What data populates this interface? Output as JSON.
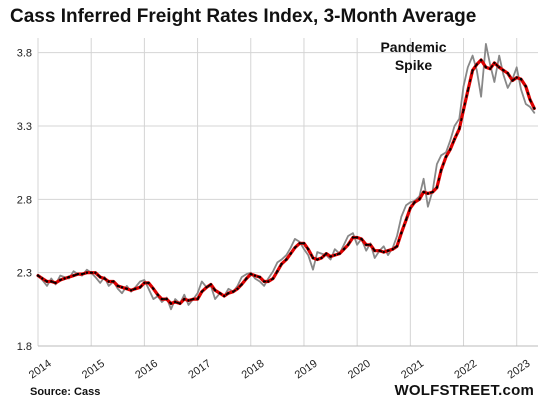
{
  "chart_data": {
    "type": "line",
    "title": "Cass Inferred Freight Rates Index, 3-Month Average",
    "xlabel": "",
    "ylabel": "",
    "ylim": [
      1.8,
      3.9
    ],
    "yticks": [
      1.8,
      2.3,
      2.8,
      3.3,
      3.8
    ],
    "xlim": [
      2014,
      2023.4
    ],
    "xticks": [
      "2014",
      "2015",
      "2016",
      "2017",
      "2018",
      "2019",
      "2020",
      "2021",
      "2022",
      "2023"
    ],
    "grid": true,
    "legend": "none",
    "series": [
      {
        "color": "#888888",
        "x": [
          2014.0,
          2014.08,
          2014.17,
          2014.25,
          2014.33,
          2014.42,
          2014.5,
          2014.58,
          2014.67,
          2014.75,
          2014.83,
          2014.92,
          2015.0,
          2015.08,
          2015.17,
          2015.25,
          2015.33,
          2015.42,
          2015.5,
          2015.58,
          2015.67,
          2015.75,
          2015.83,
          2015.92,
          2016.0,
          2016.08,
          2016.17,
          2016.25,
          2016.33,
          2016.42,
          2016.5,
          2016.58,
          2016.67,
          2016.75,
          2016.83,
          2016.92,
          2017.0,
          2017.08,
          2017.17,
          2017.25,
          2017.33,
          2017.42,
          2017.5,
          2017.58,
          2017.67,
          2017.75,
          2017.83,
          2017.92,
          2018.0,
          2018.08,
          2018.17,
          2018.25,
          2018.33,
          2018.42,
          2018.5,
          2018.58,
          2018.67,
          2018.75,
          2018.83,
          2018.92,
          2019.0,
          2019.08,
          2019.17,
          2019.25,
          2019.33,
          2019.42,
          2019.5,
          2019.58,
          2019.67,
          2019.75,
          2019.83,
          2019.92,
          2020.0,
          2020.08,
          2020.17,
          2020.25,
          2020.33,
          2020.42,
          2020.5,
          2020.58,
          2020.67,
          2020.75,
          2020.83,
          2020.92,
          2021.0,
          2021.08,
          2021.17,
          2021.25,
          2021.33,
          2021.42,
          2021.5,
          2021.58,
          2021.67,
          2021.75,
          2021.83,
          2021.92,
          2022.0,
          2022.08,
          2022.17,
          2022.25,
          2022.33,
          2022.42,
          2022.5,
          2022.58,
          2022.67,
          2022.75,
          2022.83,
          2022.92,
          2023.0,
          2023.08,
          2023.17,
          2023.25,
          2023.33
        ],
        "values": [
          2.28,
          2.25,
          2.21,
          2.26,
          2.22,
          2.28,
          2.27,
          2.26,
          2.31,
          2.29,
          2.28,
          2.32,
          2.3,
          2.27,
          2.23,
          2.27,
          2.21,
          2.24,
          2.19,
          2.16,
          2.21,
          2.17,
          2.2,
          2.24,
          2.25,
          2.19,
          2.12,
          2.14,
          2.1,
          2.13,
          2.05,
          2.12,
          2.09,
          2.15,
          2.08,
          2.12,
          2.16,
          2.24,
          2.2,
          2.21,
          2.12,
          2.16,
          2.14,
          2.19,
          2.17,
          2.21,
          2.27,
          2.29,
          2.3,
          2.26,
          2.24,
          2.21,
          2.26,
          2.31,
          2.37,
          2.39,
          2.42,
          2.47,
          2.53,
          2.51,
          2.46,
          2.42,
          2.32,
          2.44,
          2.43,
          2.42,
          2.39,
          2.46,
          2.43,
          2.49,
          2.55,
          2.57,
          2.49,
          2.53,
          2.45,
          2.5,
          2.4,
          2.45,
          2.48,
          2.42,
          2.47,
          2.55,
          2.68,
          2.76,
          2.78,
          2.79,
          2.82,
          2.94,
          2.75,
          2.86,
          3.04,
          3.1,
          3.12,
          3.2,
          3.3,
          3.35,
          3.57,
          3.7,
          3.78,
          3.68,
          3.5,
          3.86,
          3.72,
          3.6,
          3.78,
          3.65,
          3.56,
          3.62,
          3.7,
          3.55,
          3.45,
          3.43,
          3.39
        ]
      },
      {
        "color": "#dd0000",
        "x": [
          2014.0,
          2014.08,
          2014.17,
          2014.25,
          2014.33,
          2014.42,
          2014.5,
          2014.58,
          2014.67,
          2014.75,
          2014.83,
          2014.92,
          2015.0,
          2015.08,
          2015.17,
          2015.25,
          2015.33,
          2015.42,
          2015.5,
          2015.58,
          2015.67,
          2015.75,
          2015.83,
          2015.92,
          2016.0,
          2016.08,
          2016.17,
          2016.25,
          2016.33,
          2016.42,
          2016.5,
          2016.58,
          2016.67,
          2016.75,
          2016.83,
          2016.92,
          2017.0,
          2017.08,
          2017.17,
          2017.25,
          2017.33,
          2017.42,
          2017.5,
          2017.58,
          2017.67,
          2017.75,
          2017.83,
          2017.92,
          2018.0,
          2018.08,
          2018.17,
          2018.25,
          2018.33,
          2018.42,
          2018.5,
          2018.58,
          2018.67,
          2018.75,
          2018.83,
          2018.92,
          2019.0,
          2019.08,
          2019.17,
          2019.25,
          2019.33,
          2019.42,
          2019.5,
          2019.58,
          2019.67,
          2019.75,
          2019.83,
          2019.92,
          2020.0,
          2020.08,
          2020.17,
          2020.25,
          2020.33,
          2020.42,
          2020.5,
          2020.58,
          2020.67,
          2020.75,
          2020.83,
          2020.92,
          2021.0,
          2021.08,
          2021.17,
          2021.25,
          2021.33,
          2021.42,
          2021.5,
          2021.58,
          2021.67,
          2021.75,
          2021.83,
          2021.92,
          2022.0,
          2022.08,
          2022.17,
          2022.25,
          2022.33,
          2022.42,
          2022.5,
          2022.58,
          2022.67,
          2022.75,
          2022.83,
          2022.92,
          2023.0,
          2023.08,
          2023.17,
          2023.25,
          2023.33
        ],
        "values": [
          2.28,
          2.26,
          2.24,
          2.24,
          2.23,
          2.25,
          2.26,
          2.27,
          2.28,
          2.29,
          2.29,
          2.3,
          2.3,
          2.3,
          2.27,
          2.26,
          2.24,
          2.24,
          2.21,
          2.2,
          2.19,
          2.18,
          2.19,
          2.2,
          2.23,
          2.23,
          2.19,
          2.15,
          2.12,
          2.12,
          2.09,
          2.1,
          2.09,
          2.12,
          2.11,
          2.12,
          2.12,
          2.17,
          2.2,
          2.22,
          2.18,
          2.16,
          2.14,
          2.16,
          2.17,
          2.19,
          2.22,
          2.26,
          2.29,
          2.28,
          2.27,
          2.24,
          2.24,
          2.26,
          2.31,
          2.36,
          2.39,
          2.43,
          2.47,
          2.5,
          2.5,
          2.46,
          2.4,
          2.39,
          2.4,
          2.43,
          2.41,
          2.42,
          2.43,
          2.46,
          2.49,
          2.54,
          2.54,
          2.53,
          2.49,
          2.49,
          2.45,
          2.45,
          2.44,
          2.45,
          2.46,
          2.48,
          2.57,
          2.66,
          2.74,
          2.78,
          2.8,
          2.85,
          2.84,
          2.85,
          2.88,
          3.0,
          3.09,
          3.14,
          3.21,
          3.28,
          3.41,
          3.54,
          3.68,
          3.72,
          3.75,
          3.7,
          3.69,
          3.73,
          3.7,
          3.68,
          3.66,
          3.61,
          3.63,
          3.62,
          3.57,
          3.48,
          3.42
        ]
      }
    ],
    "annotations": [
      {
        "lines": [
          "Pandemic",
          "Spike"
        ],
        "x": 2022.0,
        "y": 3.75
      }
    ]
  },
  "source": "Source: Cass",
  "brand": "WOLFSTREET.com"
}
